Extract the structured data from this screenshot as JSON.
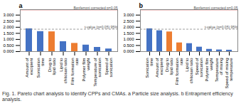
{
  "chart_data": [
    {
      "type": "bar",
      "title": "a",
      "categories": [
        "Amount of\nexcipient",
        "Sonication\ntime",
        "Drug to\nlipid ratio",
        "Lipid to\nchitosan ratio",
        "Film formation\nrate",
        "Polymer film\nweight",
        "Temperature of\nsonication",
        "Speed of\nsonication"
      ],
      "values": [
        1.88,
        1.65,
        1.63,
        0.82,
        0.68,
        0.54,
        0.35,
        0.22
      ],
      "colors": [
        "#4472C4",
        "#4472C4",
        "#ED7D31",
        "#4472C4",
        "#ED7D31",
        "#4472C4",
        "#4472C4",
        "#4472C4"
      ],
      "ylim": [
        0.0,
        3.45
      ],
      "yticks": [
        {
          "value": 0,
          "label": "0.000"
        },
        {
          "value": 0.5,
          "label": "0.500"
        },
        {
          "value": 1,
          "label": "1.000"
        },
        {
          "value": 1.5,
          "label": "1.500"
        },
        {
          "value": 2,
          "label": "2.000"
        },
        {
          "value": 2.5,
          "label": "2.500"
        },
        {
          "value": 3,
          "label": "3.000"
        }
      ],
      "annotations": [
        {
          "text": "Bonferroni corrected p=0.05",
          "y": 3.43,
          "color": "#E87070",
          "line_style": "solid"
        },
        {
          "text": "t-value (p=0.05) 95%",
          "y": 1.84,
          "color": "#888888",
          "line_style": "dashed"
        }
      ]
    },
    {
      "type": "bar",
      "title": "b",
      "categories": [
        "Sonication\ntime",
        "Amount of\nexcipient",
        "Drug to\nlipid ratio",
        "Film formation\nrate",
        "Lipid to\nchitosan ratio",
        "Speed of\nsonication",
        "Polymer film\nweight",
        "Temperature\nof mixing",
        "Speed of mixing\ntemperature"
      ],
      "values": [
        1.88,
        1.72,
        1.62,
        0.72,
        0.66,
        0.37,
        0.19,
        0.14,
        0.12
      ],
      "colors": [
        "#4472C4",
        "#4472C4",
        "#ED7D31",
        "#ED7D31",
        "#4472C4",
        "#4472C4",
        "#4472C4",
        "#4472C4",
        "#4472C4"
      ],
      "ylim": [
        0.0,
        3.45
      ],
      "yticks": [
        {
          "value": 0,
          "label": "0.000"
        },
        {
          "value": 0.5,
          "label": "0.500"
        },
        {
          "value": 1,
          "label": "1.000"
        },
        {
          "value": 1.5,
          "label": "1.500"
        },
        {
          "value": 2,
          "label": "2.000"
        },
        {
          "value": 2.5,
          "label": "2.500"
        },
        {
          "value": 3,
          "label": "3.000"
        }
      ],
      "annotations": [
        {
          "text": "Bonferroni corrected p=0.05",
          "y": 3.43,
          "color": "#E87070",
          "line_style": "solid"
        },
        {
          "text": "t-value (p=0.05) 95%",
          "y": 1.84,
          "color": "#888888",
          "line_style": "dashed"
        }
      ]
    }
  ],
  "caption": "Fig. 1.  Pareto chart analysis to identify CPPs and CMAs. a Particle size analysis. b Entrapment efficiency analysis."
}
